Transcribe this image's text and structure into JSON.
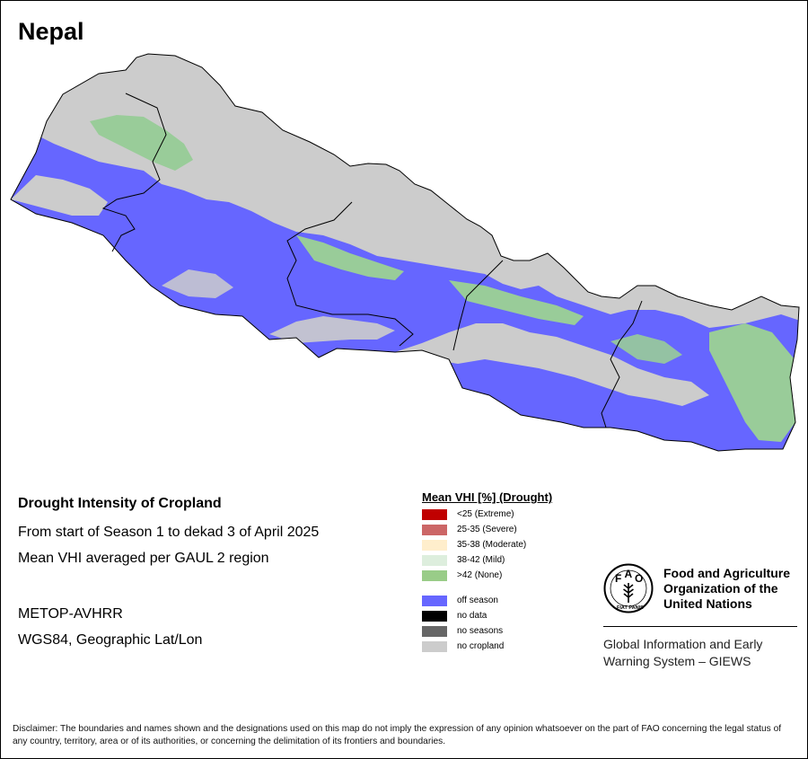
{
  "map": {
    "title": "Nepal",
    "colors": {
      "off_season": "#6666ff",
      "no_cropland": "#cccccc",
      "none_drought": "#99cc99",
      "border": "#000000"
    }
  },
  "info": {
    "title": "Drought Intensity of Cropland",
    "line1": "From start of Season 1 to dekad 3 of April 2025",
    "line2": "Mean VHI averaged per GAUL 2 region",
    "line3": "METOP-AVHRR",
    "line4": "WGS84, Geographic Lat/Lon"
  },
  "legend": {
    "title": "Mean VHI [%] (Drought)",
    "items": [
      {
        "label": "<25    (Extreme)",
        "color": "#c00000"
      },
      {
        "label": "25-35 (Severe)",
        "color": "#cc6666"
      },
      {
        "label": "35-38 (Moderate)",
        "color": "#ffeecc"
      },
      {
        "label": "38-42 (Mild)",
        "color": "#ddeedd"
      },
      {
        "label": ">42    (None)",
        "color": "#99cc88"
      }
    ],
    "status_items": [
      {
        "label": "off season",
        "color": "#6666ff"
      },
      {
        "label": "no data",
        "color": "#000000"
      },
      {
        "label": "no seasons",
        "color": "#666666"
      },
      {
        "label": "no cropland",
        "color": "#cccccc"
      }
    ]
  },
  "logo": {
    "fao_text": "FAO",
    "motto": "FIAT PANIS",
    "org_line1": "Food and Agriculture",
    "org_line2": "Organization of the",
    "org_line3": "United Nations",
    "giews_line1": "Global Information and Early",
    "giews_line2": "Warning System – GIEWS"
  },
  "disclaimer": "Disclaimer: The boundaries and names shown and the designations used on this map do not imply the expression of any opinion whatsoever on the part of FAO concerning the legal status of any country, territory, area or of its authorities, or concerning the delimitation of its frontiers and boundaries."
}
